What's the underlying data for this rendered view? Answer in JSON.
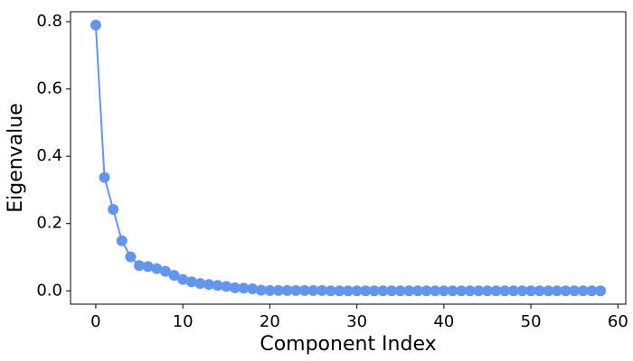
{
  "chart_data": {
    "type": "line",
    "x_label": "Component Index",
    "y_label": "Eigenvalue",
    "x": [
      0,
      1,
      2,
      3,
      4,
      5,
      6,
      7,
      8,
      9,
      10,
      11,
      12,
      13,
      14,
      15,
      16,
      17,
      18,
      19,
      20,
      21,
      22,
      23,
      24,
      25,
      26,
      27,
      28,
      29,
      30,
      31,
      32,
      33,
      34,
      35,
      36,
      37,
      38,
      39,
      40,
      41,
      42,
      43,
      44,
      45,
      46,
      47,
      48,
      49,
      50,
      51,
      52,
      53,
      54,
      55,
      56,
      57,
      58
    ],
    "series": [
      {
        "name": "Eigenvalue",
        "color": "#6495ed",
        "values": [
          0.79,
          0.337,
          0.242,
          0.149,
          0.101,
          0.075,
          0.072,
          0.066,
          0.058,
          0.046,
          0.034,
          0.027,
          0.022,
          0.019,
          0.016,
          0.013,
          0.009,
          0.008,
          0.006,
          0.002,
          0.001,
          0.001,
          0.001,
          0.001,
          0.001,
          0.001,
          0.001,
          0,
          0,
          0,
          0,
          0,
          0,
          0,
          0,
          0,
          0,
          0,
          0,
          0,
          0,
          0,
          0,
          0,
          0,
          0,
          0,
          0,
          0,
          0,
          0,
          0,
          0,
          0,
          0,
          0,
          0,
          0,
          0
        ]
      }
    ],
    "xlim": [
      -2.9,
      60.9
    ],
    "ylim": [
      -0.0395,
      0.8295
    ],
    "xticks": [
      0,
      10,
      20,
      30,
      40,
      50,
      60
    ],
    "yticks": [
      {
        "value": 0,
        "label": "0.0"
      },
      {
        "value": 0.2,
        "label": "0.2"
      },
      {
        "value": 0.4,
        "label": "0.4"
      },
      {
        "value": 0.6,
        "label": "0.6"
      },
      {
        "value": 0.8,
        "label": "0.8"
      }
    ],
    "grid": false
  }
}
